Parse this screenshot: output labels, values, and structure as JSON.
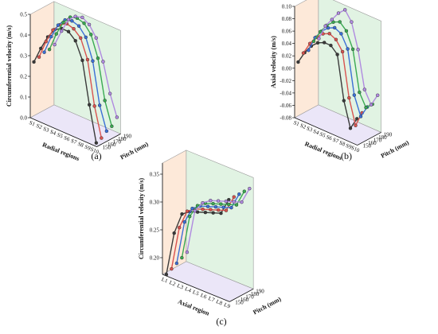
{
  "chart_data": [
    {
      "panel": "(a)",
      "type": "line",
      "z_label": "Circumferential velocity (m/s)",
      "x_label": "Radial regions",
      "y_label": "Pitch (mm)",
      "x_categories": [
        "S1",
        "S2",
        "S3",
        "S4",
        "S5",
        "S6",
        "S7",
        "S8",
        "S9",
        "S10"
      ],
      "y_ticks": [
        150,
        160,
        170,
        180,
        190
      ],
      "z_ticks": [
        "0.0",
        "0.1",
        "0.2",
        "0.3",
        "0.4",
        "0.5"
      ],
      "zlim": [
        0,
        0.5
      ],
      "series": [
        {
          "pitch": 150,
          "color": "#3a3a3a",
          "values": [
            0.27,
            0.35,
            0.42,
            0.47,
            0.49,
            0.49,
            0.46,
            0.38,
            0.18,
            0.01
          ]
        },
        {
          "pitch": 160,
          "color": "#d9534f",
          "values": [
            0.28,
            0.37,
            0.44,
            0.48,
            0.5,
            0.49,
            0.46,
            0.37,
            0.16,
            0.02
          ]
        },
        {
          "pitch": 170,
          "color": "#3b6fd6",
          "values": [
            0.29,
            0.38,
            0.45,
            0.49,
            0.5,
            0.49,
            0.45,
            0.35,
            0.15,
            0.04
          ]
        },
        {
          "pitch": 180,
          "color": "#3aaa52",
          "values": [
            0.29,
            0.38,
            0.45,
            0.49,
            0.5,
            0.49,
            0.45,
            0.35,
            0.16,
            0.05
          ]
        },
        {
          "pitch": 190,
          "color": "#b08ae0",
          "values": [
            0.3,
            0.38,
            0.45,
            0.48,
            0.49,
            0.47,
            0.42,
            0.32,
            0.18,
            0.08
          ]
        }
      ]
    },
    {
      "panel": "(b)",
      "type": "line",
      "z_label": "Axial velocity (m/s)",
      "x_label": "Radial regions",
      "y_label": "Pitch (mm)",
      "x_categories": [
        "S1",
        "S2",
        "S3",
        "S4",
        "S5",
        "S6",
        "S7",
        "S8",
        "S9",
        "S10"
      ],
      "y_ticks": [
        150,
        160,
        170,
        180,
        190
      ],
      "z_ticks": [
        "-0.08",
        "-0.06",
        "-0.04",
        "-0.02",
        "0.00",
        "0.02",
        "0.04",
        "0.06",
        "0.08",
        "0.10"
      ],
      "zlim": [
        -0.08,
        0.1
      ],
      "series": [
        {
          "pitch": 150,
          "color": "#3a3a3a",
          "values": [
            0.01,
            0.03,
            0.045,
            0.055,
            0.06,
            0.06,
            0.05,
            -0.02,
            -0.06,
            -0.04
          ]
        },
        {
          "pitch": 160,
          "color": "#d9534f",
          "values": [
            0.02,
            0.04,
            0.055,
            0.065,
            0.07,
            0.065,
            0.05,
            -0.02,
            -0.06,
            -0.035
          ]
        },
        {
          "pitch": 170,
          "color": "#3b6fd6",
          "values": [
            0.02,
            0.045,
            0.06,
            0.07,
            0.075,
            0.07,
            0.05,
            -0.02,
            -0.05,
            -0.03
          ]
        },
        {
          "pitch": 180,
          "color": "#3aaa52",
          "values": [
            0.03,
            0.05,
            0.065,
            0.075,
            0.08,
            0.07,
            0.045,
            -0.02,
            -0.04,
            -0.03
          ]
        },
        {
          "pitch": 190,
          "color": "#b08ae0",
          "values": [
            0.03,
            0.055,
            0.07,
            0.085,
            0.095,
            0.08,
            0.04,
            -0.02,
            -0.04,
            -0.02
          ]
        }
      ]
    },
    {
      "panel": "(c)",
      "type": "line",
      "z_label": "Circumferential velocity (m/s)",
      "x_label": "Axial region",
      "y_label": "Pitch (mm)",
      "x_categories": [
        "L1",
        "L2",
        "L3",
        "L4",
        "L5",
        "L6",
        "L7",
        "L8",
        "L9"
      ],
      "y_ticks": [
        150,
        160,
        170,
        180,
        190
      ],
      "z_ticks": [
        "0.20",
        "0.25",
        "0.30",
        "0.35"
      ],
      "zlim": [
        0.17,
        0.37
      ],
      "series": [
        {
          "pitch": 150,
          "color": "#3a3a3a",
          "values": [
            0.17,
            0.25,
            0.29,
            0.3,
            0.305,
            0.31,
            0.315,
            0.32,
            0.35
          ]
        },
        {
          "pitch": 160,
          "color": "#d9534f",
          "values": [
            0.175,
            0.255,
            0.29,
            0.3,
            0.305,
            0.31,
            0.315,
            0.32,
            0.35
          ]
        },
        {
          "pitch": 170,
          "color": "#3b6fd6",
          "values": [
            0.18,
            0.26,
            0.29,
            0.3,
            0.305,
            0.31,
            0.315,
            0.32,
            0.35
          ]
        },
        {
          "pitch": 180,
          "color": "#3aaa52",
          "values": [
            0.185,
            0.265,
            0.29,
            0.3,
            0.305,
            0.31,
            0.315,
            0.32,
            0.35
          ]
        },
        {
          "pitch": 190,
          "color": "#b08ae0",
          "values": [
            0.19,
            0.27,
            0.29,
            0.3,
            0.305,
            0.31,
            0.315,
            0.32,
            0.35
          ]
        }
      ]
    }
  ]
}
